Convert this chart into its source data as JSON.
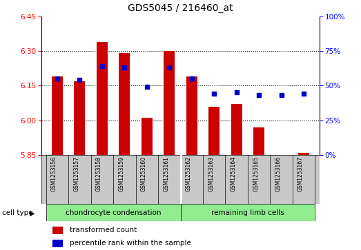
{
  "title": "GDS5045 / 216460_at",
  "samples": [
    "GSM1253156",
    "GSM1253157",
    "GSM1253158",
    "GSM1253159",
    "GSM1253160",
    "GSM1253161",
    "GSM1253162",
    "GSM1253163",
    "GSM1253164",
    "GSM1253165",
    "GSM1253166",
    "GSM1253167"
  ],
  "transformed_count": [
    6.19,
    6.17,
    6.34,
    6.29,
    6.01,
    6.3,
    6.19,
    6.06,
    6.07,
    5.97,
    5.85,
    5.86
  ],
  "percentile_rank": [
    55,
    54,
    64,
    63,
    49,
    63,
    55,
    44,
    45,
    43,
    43,
    44
  ],
  "bar_bottom": 5.85,
  "ylim_left": [
    5.85,
    6.45
  ],
  "ylim_right": [
    0,
    100
  ],
  "yticks_left": [
    5.85,
    6.0,
    6.15,
    6.3,
    6.45
  ],
  "yticks_right": [
    0,
    25,
    50,
    75,
    100
  ],
  "ytick_labels_right": [
    "0%",
    "25%",
    "50%",
    "75%",
    "100%"
  ],
  "grid_values": [
    6.3,
    6.15,
    6.0
  ],
  "cell_type_groups": [
    {
      "label": "chondrocyte condensation",
      "start": 0,
      "end": 6,
      "color": "#90EE90"
    },
    {
      "label": "remaining limb cells",
      "start": 6,
      "end": 12,
      "color": "#90EE90"
    }
  ],
  "group_boundary": 6,
  "bar_color": "#CC0000",
  "dot_color": "#0000CC",
  "cell_type_bg": "#C8C8C8",
  "legend_items": [
    {
      "label": "transformed count",
      "color": "#CC0000"
    },
    {
      "label": "percentile rank within the sample",
      "color": "#0000CC"
    }
  ]
}
